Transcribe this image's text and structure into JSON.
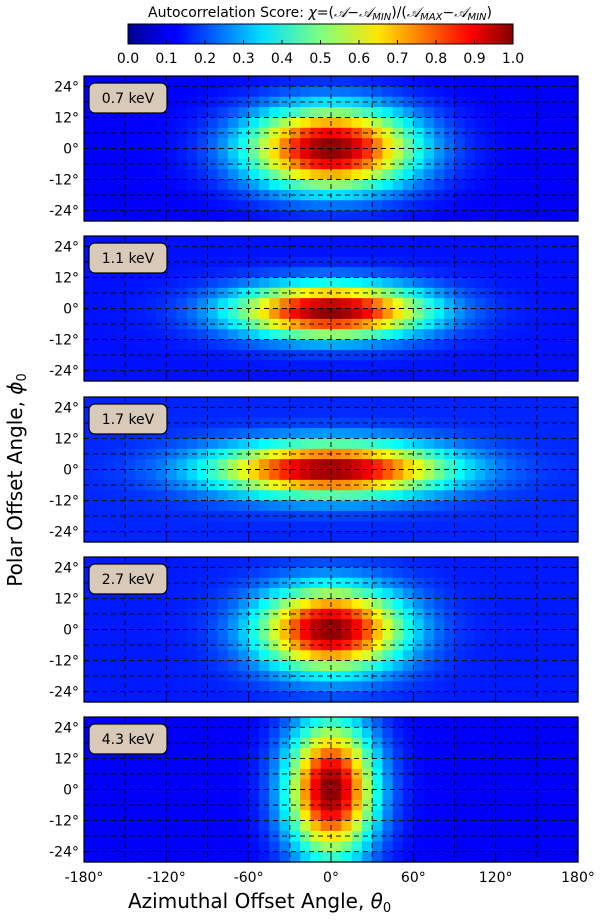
{
  "chart_data": {
    "type": "heatmap",
    "colorbar": {
      "title": "Autocorrelation Score: χ=(𝒜−𝒜MIN)/(𝒜MAX−𝒜MIN)",
      "title_prefix": "Autocorrelation Score: ",
      "ticks": [
        "0.0",
        "0.1",
        "0.2",
        "0.3",
        "0.4",
        "0.5",
        "0.6",
        "0.7",
        "0.8",
        "0.9",
        "1.0"
      ],
      "range": [
        0,
        1
      ],
      "colormap": "jet"
    },
    "xlabel": "Azimuthal Offset Angle, θ0",
    "ylabel": "Polar Offset Angle, ϕ0",
    "xlim": [
      -180,
      180
    ],
    "ylim": [
      -28,
      28
    ],
    "xticks": [
      -180,
      -120,
      -60,
      0,
      60,
      120,
      180
    ],
    "xtick_labels": [
      "-180°",
      "-120°",
      "-60°",
      "0°",
      "60°",
      "120°",
      "180°"
    ],
    "yticks": [
      24,
      12,
      0,
      -12,
      -24
    ],
    "ytick_labels": [
      "24°",
      "12°",
      "0°",
      "-12°",
      "-24°"
    ],
    "grid": "dashed",
    "panels": [
      {
        "label": "0.7 keV",
        "center": [
          0,
          0
        ],
        "sigma_theta": 42,
        "sigma_phi": 11,
        "background": 0.12
      },
      {
        "label": "1.1 keV",
        "center": [
          0,
          -1
        ],
        "sigma_theta": 48,
        "sigma_phi": 7,
        "background": 0.14
      },
      {
        "label": "1.7 keV",
        "center": [
          0,
          0
        ],
        "sigma_theta": 58,
        "sigma_phi": 7,
        "background": 0.16
      },
      {
        "label": "2.7 keV",
        "center": [
          0,
          0
        ],
        "sigma_theta": 36,
        "sigma_phi": 11,
        "background": 0.15
      },
      {
        "label": "4.3 keV",
        "center": [
          0,
          0
        ],
        "sigma_theta": 22,
        "sigma_phi": 18,
        "background": 0.12
      }
    ]
  }
}
